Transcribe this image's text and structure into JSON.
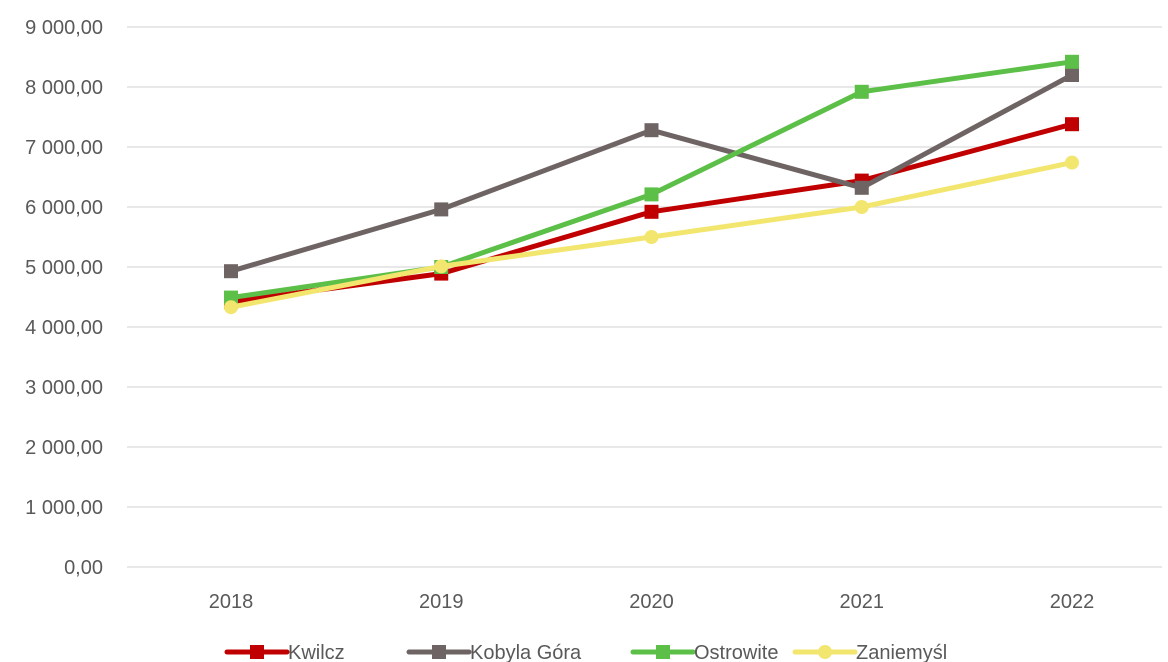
{
  "chart_data": {
    "type": "line",
    "categories": [
      "2018",
      "2019",
      "2020",
      "2021",
      "2022"
    ],
    "y_tick_labels": [
      "0,00",
      "1 000,00",
      "2 000,00",
      "3 000,00",
      "4 000,00",
      "5 000,00",
      "6 000,00",
      "7 000,00",
      "8 000,00",
      "9 000,00"
    ],
    "ylim": [
      0,
      9000
    ],
    "grid": true,
    "legend_position": "bottom",
    "series": [
      {
        "name": "Kwilcz",
        "color": "#c00000",
        "marker": "square",
        "values": [
          4420,
          4890,
          5920,
          6440,
          7380
        ]
      },
      {
        "name": "Kobyla Góra",
        "color": "#6f6464",
        "marker": "square",
        "values": [
          4930,
          5960,
          7280,
          6320,
          8200
        ]
      },
      {
        "name": "Ostrowite",
        "color": "#5cbf47",
        "marker": "square",
        "values": [
          4490,
          5000,
          6210,
          7920,
          8420
        ]
      },
      {
        "name": "Zaniemyśl",
        "color": "#f2e66f",
        "marker": "circle",
        "values": [
          4330,
          5010,
          5500,
          6000,
          6740
        ]
      }
    ]
  }
}
